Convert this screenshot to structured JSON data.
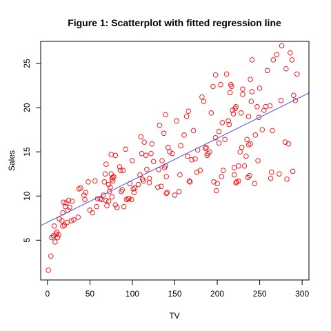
{
  "chart_data": {
    "type": "scatter",
    "title": "Figure 1: Scatterplot with fitted regression line",
    "xlabel": "TV",
    "ylabel": "Sales",
    "xlim": [
      -8,
      308
    ],
    "ylim": [
      0.5,
      27.5
    ],
    "x_ticks": [
      0,
      50,
      100,
      150,
      200,
      250,
      300
    ],
    "y_ticks": [
      5,
      10,
      15,
      20,
      25
    ],
    "grid": false,
    "legend": "none",
    "point_color": "#ff0000",
    "line_color": "#4455ee",
    "regression_line": {
      "intercept": 7.03,
      "slope": 0.0475
    },
    "points": [
      [
        1,
        1.6
      ],
      [
        4,
        3.2
      ],
      [
        5,
        5.3
      ],
      [
        7,
        5.5
      ],
      [
        8,
        6.6
      ],
      [
        9,
        4.8
      ],
      [
        10,
        5.7
      ],
      [
        11,
        5.9
      ],
      [
        12,
        5.3
      ],
      [
        13,
        5.6
      ],
      [
        14,
        7.4
      ],
      [
        17,
        7.2
      ],
      [
        18,
        6.6
      ],
      [
        18,
        8.1
      ],
      [
        19,
        9.3
      ],
      [
        20,
        6.7
      ],
      [
        21,
        8.8
      ],
      [
        22,
        9.2
      ],
      [
        23,
        7.0
      ],
      [
        24,
        8.4
      ],
      [
        25,
        9.5
      ],
      [
        26,
        8.7
      ],
      [
        28,
        7.2
      ],
      [
        29,
        9.4
      ],
      [
        31,
        7.3
      ],
      [
        36,
        7.6
      ],
      [
        37,
        10.8
      ],
      [
        39,
        10.9
      ],
      [
        43,
        10.1
      ],
      [
        44,
        9.6
      ],
      [
        45,
        10.4
      ],
      [
        48,
        11.6
      ],
      [
        50,
        8.4
      ],
      [
        53,
        8.1
      ],
      [
        56,
        11.7
      ],
      [
        58,
        8.8
      ],
      [
        59,
        9.7
      ],
      [
        62,
        9.7
      ],
      [
        64,
        9.6
      ],
      [
        66,
        10.1
      ],
      [
        67,
        11.6
      ],
      [
        68,
        12.5
      ],
      [
        69,
        13.6
      ],
      [
        69,
        9.5
      ],
      [
        70,
        8.9
      ],
      [
        72,
        9.4
      ],
      [
        72,
        11.3
      ],
      [
        73,
        10.5
      ],
      [
        74,
        11.0
      ],
      [
        75,
        12.5
      ],
      [
        75,
        14.7
      ],
      [
        76,
        11.9
      ],
      [
        76,
        9.9
      ],
      [
        77,
        11.7
      ],
      [
        77,
        12.1
      ],
      [
        78,
        12.2
      ],
      [
        80,
        9.0
      ],
      [
        80,
        14.6
      ],
      [
        82,
        8.7
      ],
      [
        85,
        13.3
      ],
      [
        86,
        12.9
      ],
      [
        87,
        10.5
      ],
      [
        88,
        10.7
      ],
      [
        89,
        12.9
      ],
      [
        90,
        8.8
      ],
      [
        92,
        15.3
      ],
      [
        93,
        9.6
      ],
      [
        95,
        9.7
      ],
      [
        96,
        9.7
      ],
      [
        97,
        11.4
      ],
      [
        99,
        9.6
      ],
      [
        100,
        14.0
      ],
      [
        101,
        10.8
      ],
      [
        102,
        10.4
      ],
      [
        103,
        10.9
      ],
      [
        107,
        11.3
      ],
      [
        109,
        12.4
      ],
      [
        110,
        16.7
      ],
      [
        111,
        14.8
      ],
      [
        112,
        11.9
      ],
      [
        113,
        11.7
      ],
      [
        114,
        16.1
      ],
      [
        116,
        14.6
      ],
      [
        117,
        13.0
      ],
      [
        120,
        11.5
      ],
      [
        120,
        12.0
      ],
      [
        122,
        14.8
      ],
      [
        123,
        15.9
      ],
      [
        125,
        13.9
      ],
      [
        130,
        11.0
      ],
      [
        131,
        13.0
      ],
      [
        132,
        18.0
      ],
      [
        134,
        11.1
      ],
      [
        135,
        14.0
      ],
      [
        137,
        17.1
      ],
      [
        138,
        13.2
      ],
      [
        139,
        19.2
      ],
      [
        139,
        13.4
      ],
      [
        140,
        10.3
      ],
      [
        140,
        12.2
      ],
      [
        141,
        10.4
      ],
      [
        142,
        15.5
      ],
      [
        144,
        15.0
      ],
      [
        147,
        14.8
      ],
      [
        150,
        10.1
      ],
      [
        152,
        18.5
      ],
      [
        155,
        10.5
      ],
      [
        156,
        12.4
      ],
      [
        157,
        15.7
      ],
      [
        161,
        16.9
      ],
      [
        164,
        19.0
      ],
      [
        165,
        14.5
      ],
      [
        166,
        19.6
      ],
      [
        167,
        11.7
      ],
      [
        168,
        11.6
      ],
      [
        170,
        14.1
      ],
      [
        172,
        17.4
      ],
      [
        174,
        14.2
      ],
      [
        176,
        12.7
      ],
      [
        177,
        15.2
      ],
      [
        180,
        12.9
      ],
      [
        182,
        21.2
      ],
      [
        184,
        20.7
      ],
      [
        186,
        15.4
      ],
      [
        187,
        15.5
      ],
      [
        188,
        14.6
      ],
      [
        189,
        14.8
      ],
      [
        191,
        15.0
      ],
      [
        193,
        19.4
      ],
      [
        195,
        22.4
      ],
      [
        196,
        11.6
      ],
      [
        198,
        16.6
      ],
      [
        198,
        23.7
      ],
      [
        199,
        10.6
      ],
      [
        200,
        11.4
      ],
      [
        202,
        17.3
      ],
      [
        202,
        16.0
      ],
      [
        204,
        22.6
      ],
      [
        205,
        12.2
      ],
      [
        206,
        18.3
      ],
      [
        207,
        12.9
      ],
      [
        209,
        16.4
      ],
      [
        211,
        23.8
      ],
      [
        213,
        18.5
      ],
      [
        214,
        18.1
      ],
      [
        215,
        21.7
      ],
      [
        216,
        22.6
      ],
      [
        217,
        22.4
      ],
      [
        218,
        19.7
      ],
      [
        219,
        19.3
      ],
      [
        220,
        13.2
      ],
      [
        220,
        12.4
      ],
      [
        221,
        19.9
      ],
      [
        222,
        20.1
      ],
      [
        222,
        11.5
      ],
      [
        223,
        11.6
      ],
      [
        225,
        11.7
      ],
      [
        225,
        13.4
      ],
      [
        227,
        15.0
      ],
      [
        228,
        19.4
      ],
      [
        229,
        15.5
      ],
      [
        230,
        22.1
      ],
      [
        230,
        21.5
      ],
      [
        232,
        13.4
      ],
      [
        234,
        14.5
      ],
      [
        235,
        16.4
      ],
      [
        236,
        12.1
      ],
      [
        237,
        19.0
      ],
      [
        237,
        15.8
      ],
      [
        238,
        12.3
      ],
      [
        239,
        15.9
      ],
      [
        239,
        23.2
      ],
      [
        240,
        20.7
      ],
      [
        241,
        21.8
      ],
      [
        241,
        25.4
      ],
      [
        244,
        11.4
      ],
      [
        245,
        16.9
      ],
      [
        247,
        20.1
      ],
      [
        248,
        14.0
      ],
      [
        249,
        18.9
      ],
      [
        250,
        22.2
      ],
      [
        253,
        17.5
      ],
      [
        255,
        19.7
      ],
      [
        257,
        20.1
      ],
      [
        259,
        24.2
      ],
      [
        262,
        20.2
      ],
      [
        263,
        12.0
      ],
      [
        264,
        12.7
      ],
      [
        265,
        17.4
      ],
      [
        266,
        25.4
      ],
      [
        270,
        26.0
      ],
      [
        273,
        12.5
      ],
      [
        275,
        20.8
      ],
      [
        276,
        27.0
      ],
      [
        280,
        16.1
      ],
      [
        281,
        24.4
      ],
      [
        282,
        11.9
      ],
      [
        284,
        15.9
      ],
      [
        286,
        26.2
      ],
      [
        288,
        25.4
      ],
      [
        289,
        12.8
      ],
      [
        290,
        21.4
      ],
      [
        292,
        20.8
      ],
      [
        294,
        23.8
      ]
    ]
  }
}
